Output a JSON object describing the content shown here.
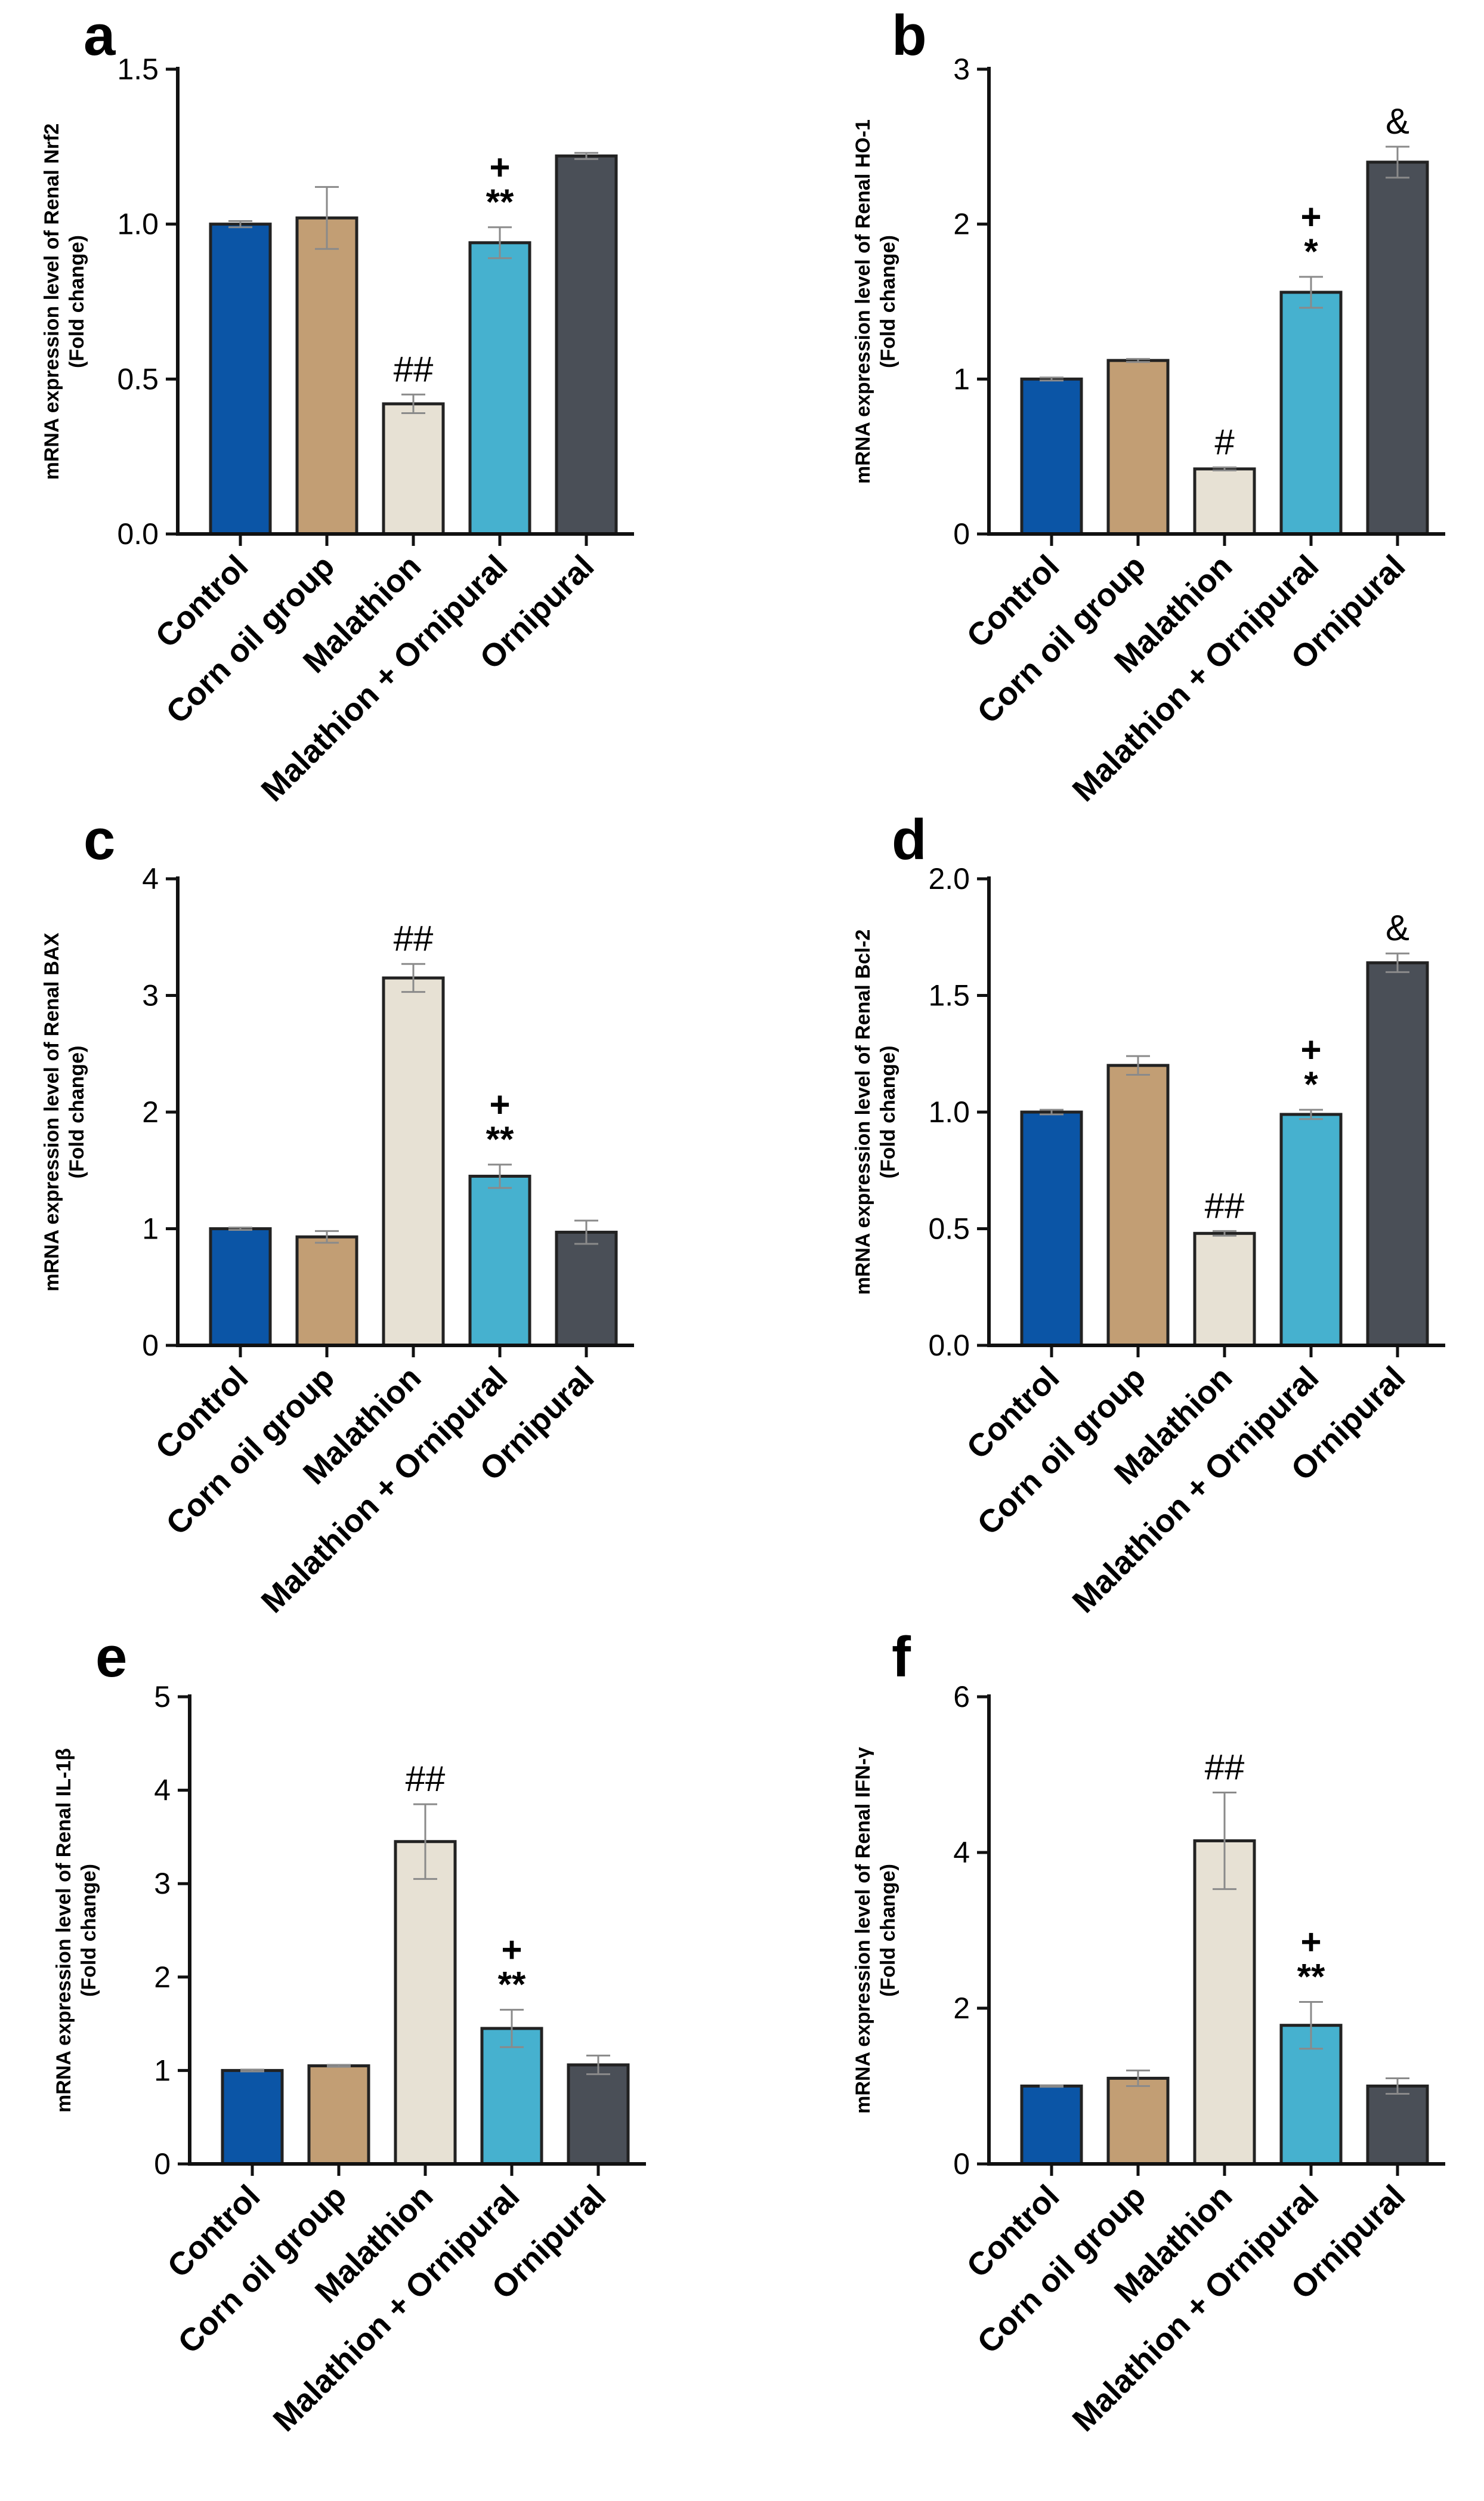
{
  "colors": {
    "control": "#0b55a6",
    "corn_oil": "#c29e74",
    "malathion": "#e7e1d4",
    "malathion_ornipural": "#46b1cf",
    "ornipural": "#4a4f57",
    "axis": "#111111"
  },
  "chart_data": [
    {
      "panel": "a",
      "type": "bar",
      "ylabel_line1": "mRNA expression level of  Renal Nrf2",
      "ylabel_line2": "(Fold change)",
      "categories": [
        "Control",
        "Corn oil group",
        "Malathion",
        "Malathion + Ornipural",
        "Ornipural"
      ],
      "values": [
        1.0,
        1.02,
        0.42,
        0.94,
        1.22
      ],
      "errors": [
        0.01,
        0.1,
        0.03,
        0.05,
        0.01
      ],
      "ylim": [
        0,
        1.5
      ],
      "yticks": [
        "0.0",
        "0.5",
        "1.0",
        "1.5"
      ],
      "annotations": [
        {
          "bar": 2,
          "lines": [
            "##"
          ]
        },
        {
          "bar": 3,
          "lines": [
            "+",
            "**"
          ]
        }
      ]
    },
    {
      "panel": "b",
      "type": "bar",
      "ylabel_line1": "mRNA expression level of  Renal HO-1",
      "ylabel_line2": "(Fold change)",
      "categories": [
        "Control",
        "Corn oil group",
        "Malathion",
        "Malathion + Ornipural",
        "Ornipural"
      ],
      "values": [
        1.0,
        1.12,
        0.42,
        1.56,
        2.4
      ],
      "errors": [
        0.01,
        0.01,
        0.01,
        0.1,
        0.1
      ],
      "ylim": [
        0,
        3
      ],
      "yticks": [
        "0",
        "1",
        "2",
        "3"
      ],
      "annotations": [
        {
          "bar": 2,
          "lines": [
            "#"
          ]
        },
        {
          "bar": 3,
          "lines": [
            "+",
            "*"
          ]
        },
        {
          "bar": 4,
          "lines": [
            "&"
          ]
        }
      ]
    },
    {
      "panel": "c",
      "type": "bar",
      "ylabel_line1": "mRNA expression level of  Renal BAX",
      "ylabel_line2": "(Fold change)",
      "categories": [
        "Control",
        "Corn oil group",
        "Malathion",
        "Malathion + Ornipural",
        "Ornipural"
      ],
      "values": [
        1.0,
        0.93,
        3.15,
        1.45,
        0.97
      ],
      "errors": [
        0.01,
        0.05,
        0.12,
        0.1,
        0.1
      ],
      "ylim": [
        0,
        4
      ],
      "yticks": [
        "0",
        "1",
        "2",
        "3",
        "4"
      ],
      "annotations": [
        {
          "bar": 2,
          "lines": [
            "##"
          ]
        },
        {
          "bar": 3,
          "lines": [
            "+",
            "**"
          ]
        }
      ]
    },
    {
      "panel": "d",
      "type": "bar",
      "ylabel_line1": "mRNA expression level of  Renal Bcl-2",
      "ylabel_line2": "(Fold change)",
      "categories": [
        "Control",
        "Corn oil group",
        "Malathion",
        "Malathion + Ornipural",
        "Ornipural"
      ],
      "values": [
        1.0,
        1.2,
        0.48,
        0.99,
        1.64
      ],
      "errors": [
        0.01,
        0.04,
        0.01,
        0.02,
        0.04
      ],
      "ylim": [
        0,
        2.0
      ],
      "yticks": [
        "0.0",
        "0.5",
        "1.0",
        "1.5",
        "2.0"
      ],
      "annotations": [
        {
          "bar": 2,
          "lines": [
            "##"
          ]
        },
        {
          "bar": 3,
          "lines": [
            "+",
            "*"
          ]
        },
        {
          "bar": 4,
          "lines": [
            "&"
          ]
        }
      ]
    },
    {
      "panel": "e",
      "type": "bar",
      "ylabel_line1": "mRNA expression level of  Renal IL-1β",
      "ylabel_line2": "(Fold change)",
      "categories": [
        "Control",
        "Corn oil group",
        "Malathion",
        "Malathion + Ornipural",
        "Ornipural"
      ],
      "values": [
        1.0,
        1.05,
        3.45,
        1.45,
        1.06
      ],
      "errors": [
        0.01,
        0.01,
        0.4,
        0.2,
        0.1
      ],
      "ylim": [
        0,
        5
      ],
      "yticks": [
        "0",
        "1",
        "2",
        "3",
        "4",
        "5"
      ],
      "annotations": [
        {
          "bar": 2,
          "lines": [
            "##"
          ]
        },
        {
          "bar": 3,
          "lines": [
            "+",
            "**"
          ]
        }
      ]
    },
    {
      "panel": "f",
      "type": "bar",
      "ylabel_line1": "mRNA expression level of Renal  IFN-γ",
      "ylabel_line2": "(Fold change)",
      "categories": [
        "Control",
        "Corn oil group",
        "Malathion",
        "Malathion + Ornipural",
        "Ornipural"
      ],
      "values": [
        1.0,
        1.1,
        4.15,
        1.78,
        1.0
      ],
      "errors": [
        0.01,
        0.1,
        0.62,
        0.3,
        0.1
      ],
      "ylim": [
        0,
        6
      ],
      "yticks": [
        "0",
        "2",
        "4",
        "6"
      ],
      "annotations": [
        {
          "bar": 2,
          "lines": [
            "##"
          ]
        },
        {
          "bar": 3,
          "lines": [
            "+",
            "**"
          ]
        }
      ]
    }
  ]
}
